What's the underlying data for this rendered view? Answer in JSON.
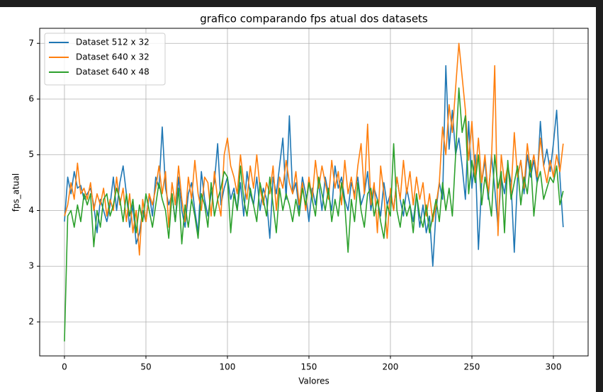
{
  "chart_data": {
    "type": "line",
    "title": "grafico comparando fps atual dos datasets",
    "x_label": "Valores",
    "y_label": "fps_atual",
    "xlim": [
      -15.2,
      321.3
    ],
    "ylim": [
      1.39,
      7.27
    ],
    "xticks": [
      0,
      50,
      100,
      150,
      200,
      250,
      300
    ],
    "yticks": [
      2,
      3,
      4,
      5,
      6,
      7
    ],
    "grid": true,
    "legend": "upper-left",
    "x": [
      0,
      2,
      4,
      6,
      8,
      10,
      12,
      14,
      16,
      18,
      20,
      22,
      24,
      26,
      28,
      30,
      32,
      34,
      36,
      38,
      40,
      42,
      44,
      46,
      48,
      50,
      52,
      54,
      56,
      58,
      60,
      62,
      64,
      66,
      68,
      70,
      72,
      74,
      76,
      78,
      80,
      82,
      84,
      86,
      88,
      90,
      92,
      94,
      96,
      98,
      100,
      102,
      104,
      106,
      108,
      110,
      112,
      114,
      116,
      118,
      120,
      122,
      124,
      126,
      128,
      130,
      132,
      134,
      136,
      138,
      140,
      142,
      144,
      146,
      148,
      150,
      152,
      154,
      156,
      158,
      160,
      162,
      164,
      166,
      168,
      170,
      172,
      174,
      176,
      178,
      180,
      182,
      184,
      186,
      188,
      190,
      192,
      194,
      196,
      198,
      200,
      202,
      204,
      206,
      208,
      210,
      212,
      214,
      216,
      218,
      220,
      222,
      224,
      226,
      228,
      230,
      232,
      234,
      236,
      238,
      240,
      242,
      244,
      246,
      248,
      250,
      252,
      254,
      256,
      258,
      260,
      262,
      264,
      266,
      268,
      270,
      272,
      274,
      276,
      278,
      280,
      282,
      284,
      286,
      288,
      290,
      292,
      294,
      296,
      298,
      300,
      302,
      304,
      306
    ],
    "series": [
      {
        "name": "Dataset 512 x 32",
        "color": "#1f77b4",
        "values": [
          3.8,
          4.6,
          4.3,
          4.7,
          4.4,
          4.45,
          4.2,
          4.3,
          4.4,
          4.1,
          3.6,
          4.2,
          4.0,
          3.8,
          4.1,
          4.6,
          4.0,
          4.5,
          4.8,
          4.3,
          3.7,
          4.1,
          3.4,
          3.6,
          4.0,
          3.8,
          4.3,
          3.9,
          4.6,
          4.4,
          5.5,
          4.4,
          4.1,
          4.3,
          3.8,
          4.6,
          4.0,
          3.7,
          4.3,
          4.5,
          4.0,
          3.6,
          4.7,
          4.2,
          3.9,
          4.3,
          4.5,
          5.2,
          4.1,
          4.4,
          4.6,
          4.2,
          4.4,
          4.0,
          4.5,
          3.9,
          4.7,
          4.3,
          4.1,
          4.6,
          4.0,
          4.4,
          4.2,
          3.5,
          4.6,
          4.3,
          4.8,
          5.3,
          4.2,
          5.7,
          4.3,
          4.5,
          4.0,
          4.6,
          4.3,
          3.8,
          4.4,
          4.1,
          4.5,
          4.0,
          4.6,
          4.3,
          4.0,
          4.8,
          4.4,
          4.6,
          4.2,
          4.0,
          4.5,
          4.3,
          4.6,
          4.1,
          4.3,
          4.7,
          4.0,
          4.4,
          4.2,
          3.9,
          4.5,
          4.1,
          4.3,
          4.0,
          4.6,
          4.2,
          3.9,
          4.4,
          4.1,
          3.8,
          4.3,
          3.7,
          4.1,
          3.6,
          3.9,
          3.0,
          4.0,
          4.5,
          4.2,
          6.6,
          5.1,
          5.8,
          5.0,
          5.3,
          4.8,
          4.2,
          5.6,
          4.4,
          5.0,
          3.3,
          4.5,
          4.9,
          4.2,
          5.0,
          4.4,
          3.7,
          4.6,
          4.3,
          4.8,
          4.5,
          3.25,
          4.6,
          4.9,
          4.3,
          5.0,
          4.6,
          4.9,
          4.5,
          5.6,
          4.8,
          5.1,
          4.7,
          5.2,
          5.8,
          4.6,
          3.7
        ]
      },
      {
        "name": "Dataset 640 x 32",
        "color": "#ff7f0e",
        "values": [
          3.9,
          4.1,
          4.5,
          4.2,
          4.85,
          4.3,
          4.4,
          4.2,
          4.5,
          4.0,
          4.3,
          4.1,
          4.4,
          3.9,
          4.2,
          4.0,
          4.6,
          4.1,
          4.4,
          3.8,
          4.3,
          3.6,
          4.0,
          3.2,
          4.2,
          3.8,
          4.3,
          4.1,
          4.4,
          4.8,
          4.3,
          4.7,
          3.7,
          4.5,
          4.1,
          4.8,
          4.2,
          3.8,
          4.6,
          4.2,
          4.9,
          4.3,
          4.0,
          4.6,
          4.5,
          3.9,
          4.7,
          4.2,
          3.9,
          5.0,
          5.3,
          4.8,
          4.6,
          4.3,
          5.0,
          4.5,
          4.2,
          4.8,
          4.4,
          5.0,
          4.4,
          4.1,
          4.5,
          4.3,
          4.8,
          4.0,
          4.6,
          4.4,
          4.9,
          4.5,
          4.3,
          4.7,
          4.1,
          4.5,
          4.0,
          4.6,
          4.2,
          4.9,
          4.4,
          4.8,
          4.5,
          4.2,
          4.9,
          4.4,
          4.7,
          4.1,
          4.9,
          4.3,
          4.6,
          4.2,
          4.8,
          5.2,
          4.3,
          5.55,
          4.1,
          4.5,
          3.6,
          4.8,
          4.3,
          3.5,
          4.4,
          4.0,
          4.6,
          4.2,
          4.9,
          4.3,
          4.7,
          4.1,
          4.6,
          4.2,
          4.5,
          3.9,
          4.3,
          3.8,
          4.1,
          4.5,
          5.5,
          5.0,
          5.9,
          5.4,
          6.2,
          7.0,
          6.4,
          5.8,
          4.9,
          5.6,
          4.6,
          5.3,
          4.5,
          5.0,
          4.3,
          4.9,
          6.6,
          3.55,
          5.0,
          4.5,
          4.8,
          4.3,
          5.4,
          4.6,
          4.9,
          4.4,
          5.2,
          4.7,
          5.0,
          4.6,
          5.3,
          4.8,
          4.5,
          4.9,
          4.6,
          5.0,
          4.7,
          5.2
        ]
      },
      {
        "name": "Dataset 640 x 48",
        "color": "#2ca02c",
        "values": [
          1.65,
          3.9,
          4.0,
          3.7,
          4.1,
          3.8,
          4.3,
          4.1,
          4.3,
          3.35,
          4.0,
          3.7,
          4.2,
          4.3,
          3.9,
          4.1,
          4.4,
          4.2,
          3.8,
          4.3,
          3.9,
          4.2,
          3.6,
          4.1,
          3.8,
          4.3,
          4.0,
          3.7,
          4.1,
          4.5,
          4.2,
          4.0,
          3.5,
          4.3,
          3.8,
          4.4,
          3.4,
          4.1,
          3.7,
          4.2,
          3.9,
          3.5,
          4.3,
          4.1,
          3.7,
          4.5,
          3.9,
          4.2,
          4.4,
          4.7,
          4.6,
          3.6,
          4.3,
          4.0,
          4.8,
          4.2,
          3.9,
          4.4,
          4.1,
          3.8,
          4.5,
          4.2,
          3.9,
          4.6,
          4.1,
          3.6,
          4.4,
          4.0,
          4.3,
          4.1,
          3.8,
          4.2,
          3.9,
          4.4,
          4.1,
          4.5,
          4.2,
          3.9,
          4.6,
          4.3,
          4.0,
          4.4,
          3.8,
          4.2,
          3.9,
          4.5,
          4.1,
          3.25,
          4.2,
          3.8,
          4.5,
          4.0,
          3.7,
          4.3,
          4.4,
          3.9,
          4.2,
          3.8,
          3.5,
          4.1,
          3.9,
          5.2,
          4.0,
          3.7,
          4.2,
          3.9,
          4.1,
          3.6,
          4.3,
          3.9,
          3.7,
          4.1,
          3.6,
          3.9,
          4.2,
          3.8,
          4.5,
          4.0,
          4.4,
          3.9,
          5.0,
          6.2,
          5.4,
          5.7,
          4.3,
          4.9,
          4.5,
          5.0,
          4.1,
          4.6,
          4.3,
          3.9,
          5.0,
          4.4,
          4.7,
          3.6,
          4.9,
          4.2,
          4.5,
          4.8,
          4.1,
          4.6,
          4.3,
          4.9,
          3.9,
          4.5,
          4.7,
          4.2,
          4.4,
          4.6,
          4.5,
          4.8,
          4.1,
          4.35
        ]
      }
    ]
  }
}
